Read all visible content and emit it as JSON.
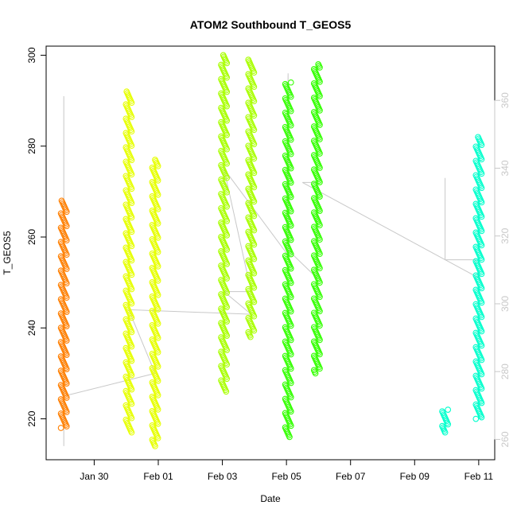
{
  "chart_data": {
    "type": "scatter",
    "title": "ATOM2 Southbound T_GEOS5",
    "xlabel": "Date",
    "ylabel": "T_GEOS5",
    "x_ticks": [
      "Jan 30",
      "Feb 01",
      "Feb 03",
      "Feb 05",
      "Feb 07",
      "Feb 09",
      "Feb 11"
    ],
    "x_tick_days": [
      0,
      2,
      4,
      6,
      8,
      10,
      12
    ],
    "x_range_days": [
      -1.5,
      12.5
    ],
    "y_ticks": [
      220,
      240,
      260,
      280,
      300
    ],
    "ylim": [
      211,
      302
    ],
    "y2_ticks": [
      260,
      280,
      300,
      320,
      340,
      360
    ],
    "y2lim": [
      254,
      376
    ],
    "series": [
      {
        "color": "#ff7f00",
        "segments": [
          {
            "x": -0.95,
            "ymin": 218,
            "ymax": 268
          }
        ]
      },
      {
        "color": "#e6ff00",
        "segments": [
          {
            "x": 1.08,
            "ymin": 217,
            "ymax": 292
          },
          {
            "x": 1.9,
            "ymin": 214,
            "ymax": 277
          }
        ]
      },
      {
        "color": "#a8ff00",
        "segments": [
          {
            "x": 4.05,
            "ymin": 226,
            "ymax": 300
          },
          {
            "x": 4.9,
            "ymin": 238,
            "ymax": 299
          }
        ]
      },
      {
        "color": "#33ff00",
        "segments": [
          {
            "x": 6.05,
            "ymin": 216,
            "ymax": 294
          },
          {
            "x": 6.95,
            "ymin": 230,
            "ymax": 298
          }
        ]
      },
      {
        "color": "#00ff4d",
        "segments": []
      },
      {
        "color": "#00ffcc",
        "segments": [
          {
            "x": 10.95,
            "ymin": 217,
            "ymax": 222
          },
          {
            "x": 12.0,
            "ymin": 220,
            "ymax": 282
          }
        ]
      }
    ],
    "secondary_line": {
      "color": "#c8c8c8",
      "points": [
        [
          -0.95,
          291
        ],
        [
          -0.95,
          214
        ],
        [
          -0.95,
          225
        ],
        [
          1.9,
          230
        ],
        [
          1.08,
          244
        ],
        [
          4.9,
          243
        ],
        [
          4.05,
          248
        ],
        [
          4.9,
          248
        ],
        [
          4.05,
          275
        ],
        [
          6.05,
          256
        ],
        [
          6.05,
          296
        ],
        [
          6.0,
          257.5
        ],
        [
          6.95,
          251
        ],
        [
          6.95,
          272
        ],
        [
          6.5,
          272
        ],
        [
          12.0,
          251
        ],
        [
          11.9,
          255
        ],
        [
          10.95,
          255
        ],
        [
          10.95,
          273
        ]
      ]
    }
  }
}
